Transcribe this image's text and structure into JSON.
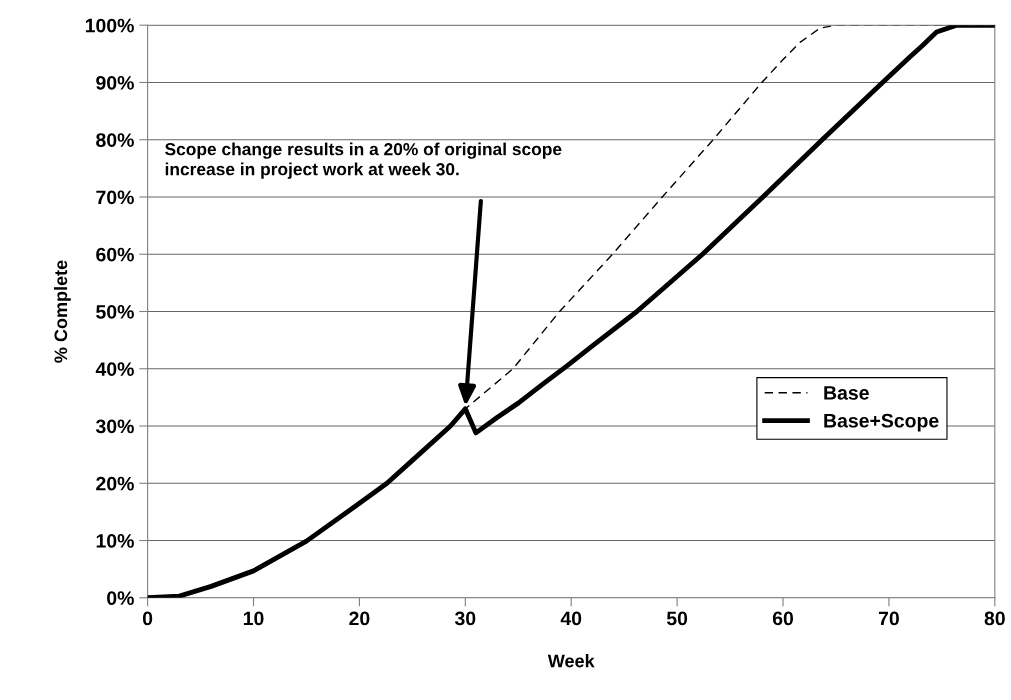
{
  "chart_data": {
    "type": "line",
    "xlabel": "Week",
    "ylabel": "% Complete",
    "xlim": [
      0,
      80
    ],
    "ylim": [
      0,
      100
    ],
    "xticks": [
      0,
      10,
      20,
      30,
      40,
      50,
      60,
      70,
      80
    ],
    "yticks": [
      {
        "value": 0,
        "label": "0%"
      },
      {
        "value": 10,
        "label": "10%"
      },
      {
        "value": 20,
        "label": "20%"
      },
      {
        "value": 30,
        "label": "30%"
      },
      {
        "value": 40,
        "label": "40%"
      },
      {
        "value": 50,
        "label": "50%"
      },
      {
        "value": 60,
        "label": "60%"
      },
      {
        "value": 70,
        "label": "70%"
      },
      {
        "value": 80,
        "label": "80%"
      },
      {
        "value": 90,
        "label": "90%"
      },
      {
        "value": 100,
        "label": "100%"
      }
    ],
    "grid": "y",
    "legend": "right",
    "marker": "none",
    "annotations": [
      {
        "text": "Scope change results in a 20% of original scope increase in project work at week 30.",
        "x": 30,
        "y": 33
      }
    ],
    "series": [
      {
        "name": "Base",
        "color": "#000000",
        "line_style": "dashed",
        "x": [
          0,
          3,
          6,
          10,
          15,
          20,
          22.6,
          25,
          28.6,
          30,
          34.5,
          38.9,
          43.9,
          48.6,
          53.4,
          58,
          60,
          61.6,
          63.5,
          65,
          80
        ],
        "values": [
          0,
          0.3,
          2,
          4.7,
          9.9,
          16.5,
          20,
          24,
          30,
          33,
          40,
          50,
          60,
          70,
          80,
          90,
          94,
          97,
          99.5,
          100,
          100
        ]
      },
      {
        "name": "Base+Scope",
        "color": "#000000",
        "line_style": "solid",
        "x": [
          0,
          3,
          6,
          10,
          15,
          20,
          22.6,
          25,
          28.6,
          30,
          31,
          33,
          35,
          37.1,
          39.6,
          42,
          46.2,
          52.4,
          58.1,
          63.7,
          69.4,
          72,
          73.2,
          74.5,
          76.4,
          80
        ],
        "values": [
          0,
          0.3,
          2,
          4.7,
          9.9,
          16.5,
          20,
          24,
          30,
          33,
          28.8,
          31.5,
          34,
          37,
          40.5,
          44,
          50,
          60,
          70,
          80,
          90,
          94.5,
          96.5,
          98.8,
          100,
          100
        ]
      }
    ]
  }
}
